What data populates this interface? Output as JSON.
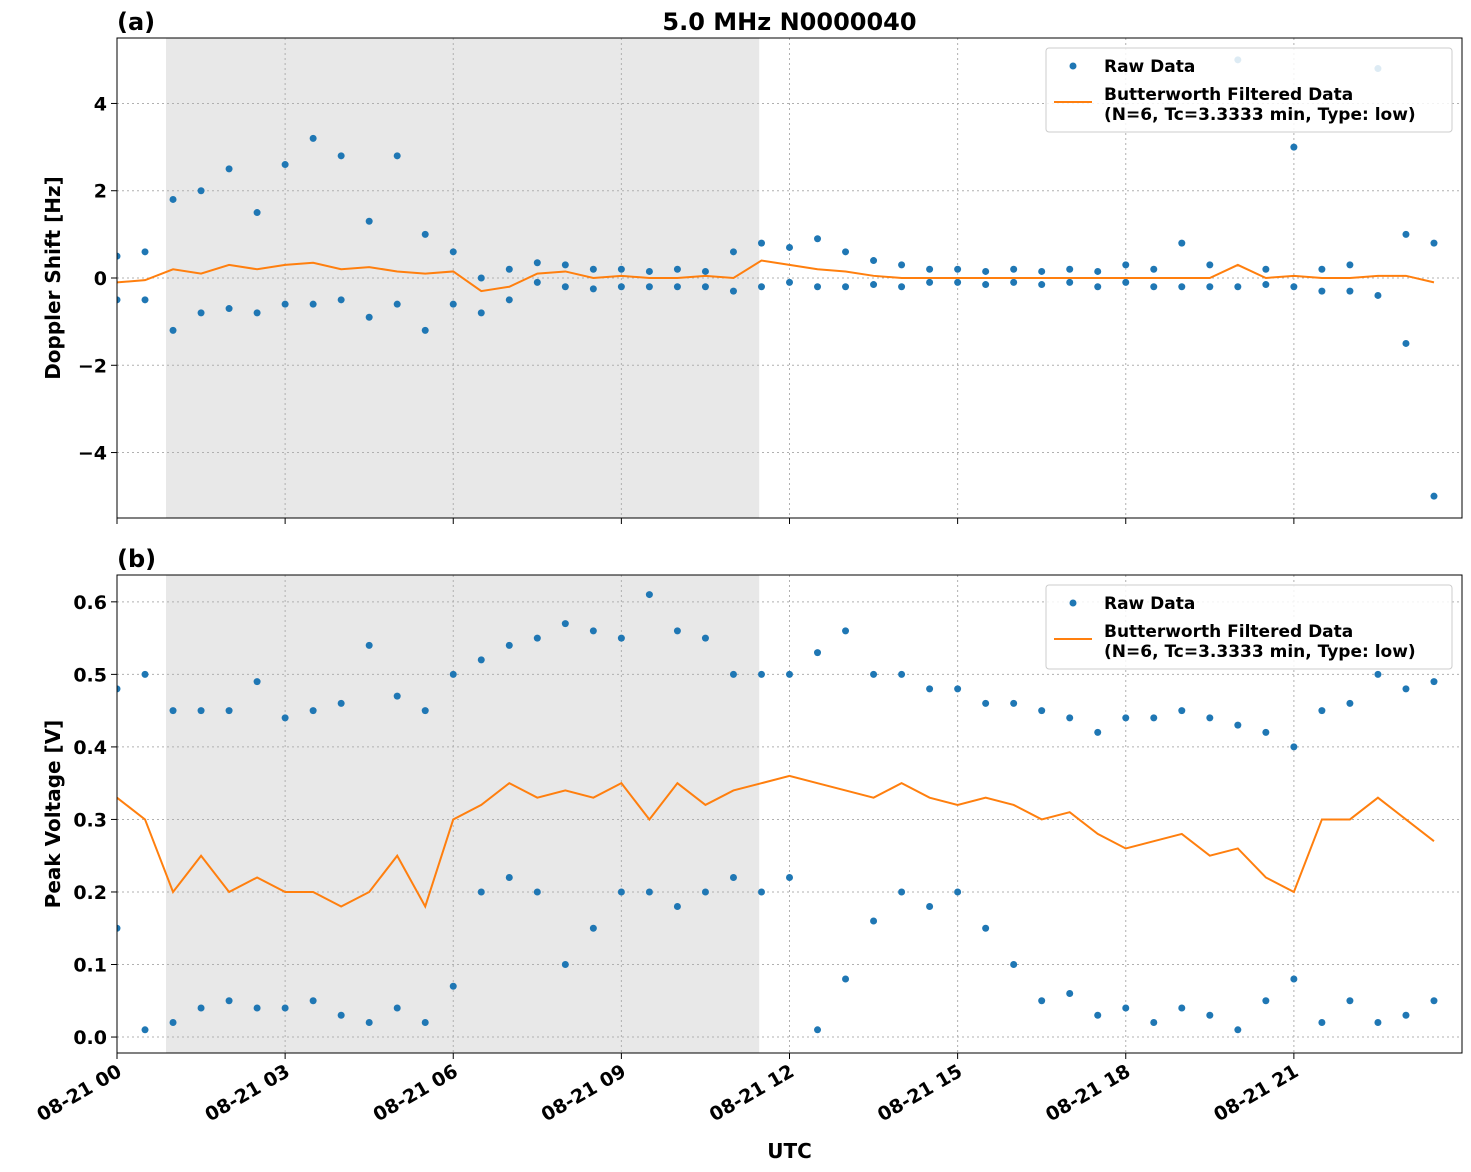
{
  "chart_data": [
    {
      "type": "scatter",
      "panel_label": "(a)",
      "title": "5.0 MHz N0000040",
      "ylabel": "Doppler Shift [Hz]",
      "xlim": [
        0,
        24
      ],
      "xticks": [
        0,
        3,
        6,
        9,
        12,
        15,
        18,
        21
      ],
      "ylim": [
        -5.5,
        5.5
      ],
      "yticks": [
        {
          "value": -4,
          "label": "−4"
        },
        {
          "value": -2,
          "label": "−2"
        },
        0,
        2,
        4
      ],
      "grid": true,
      "legend": "upper right",
      "shaded_xrange": [
        0.875,
        11.46
      ],
      "series": [
        {
          "name": "Raw Data",
          "color": "#1f77b4",
          "style": "markers",
          "x": [
            0,
            0.5,
            1,
            1.5,
            2,
            2.5,
            3,
            3.5,
            4,
            4.5,
            5,
            5.5,
            6,
            6.5,
            7,
            7.5,
            8,
            8.5,
            9,
            9.5,
            10,
            10.5,
            11,
            11.5,
            12,
            12.5,
            13,
            13.5,
            14,
            14.5,
            15,
            15.5,
            16,
            16.5,
            17,
            17.5,
            18,
            18.5,
            19,
            19.5,
            20,
            20.5,
            21,
            21.5,
            22,
            22.5,
            23,
            23.5,
            0,
            0.5,
            1,
            1.5,
            2,
            2.5,
            3,
            3.5,
            4,
            4.5,
            5,
            5.5,
            6,
            6.5,
            7,
            7.5,
            8,
            8.5,
            9,
            9.5,
            10,
            10.5,
            11,
            11.5,
            12,
            12.5,
            13,
            13.5,
            14,
            14.5,
            15,
            15.5,
            16,
            16.5,
            17,
            17.5,
            18,
            18.5,
            19,
            19.5,
            20,
            20.5,
            21,
            21.5,
            22,
            22.5,
            23,
            23.5
          ],
          "values": [
            0.5,
            0.6,
            1.8,
            2.0,
            2.5,
            1.5,
            2.6,
            3.2,
            2.8,
            1.3,
            2.8,
            1.0,
            0.6,
            0.0,
            0.2,
            0.35,
            0.3,
            0.2,
            0.2,
            0.15,
            0.2,
            0.15,
            0.6,
            0.8,
            0.7,
            0.9,
            0.6,
            0.4,
            0.3,
            0.2,
            0.2,
            0.15,
            0.2,
            0.15,
            0.2,
            0.15,
            0.3,
            0.2,
            0.8,
            0.3,
            5.0,
            0.2,
            3.0,
            0.2,
            0.3,
            4.8,
            1.0,
            0.8,
            -0.5,
            -0.5,
            -1.2,
            -0.8,
            -0.7,
            -0.8,
            -0.6,
            -0.6,
            -0.5,
            -0.9,
            -0.6,
            -1.2,
            -0.6,
            -0.8,
            -0.5,
            -0.1,
            -0.2,
            -0.25,
            -0.2,
            -0.2,
            -0.2,
            -0.2,
            -0.3,
            -0.2,
            -0.1,
            -0.2,
            -0.2,
            -0.15,
            -0.2,
            -0.1,
            -0.1,
            -0.15,
            -0.1,
            -0.15,
            -0.1,
            -0.2,
            -0.1,
            -0.2,
            -0.2,
            -0.2,
            -0.2,
            -0.15,
            -0.2,
            -0.3,
            -0.3,
            -0.4,
            -1.5,
            -5.0
          ]
        },
        {
          "name": "Butterworth Filtered Data\n(N=6, Tc=3.3333 min, Type: low)",
          "color": "#ff7f0e",
          "style": "line",
          "x": [
            0,
            0.5,
            1,
            1.5,
            2,
            2.5,
            3,
            3.5,
            4,
            4.5,
            5,
            5.5,
            6,
            6.5,
            7,
            7.5,
            8,
            8.5,
            9,
            9.5,
            10,
            10.5,
            11,
            11.5,
            12,
            12.5,
            13,
            13.5,
            14,
            14.5,
            15,
            15.5,
            16,
            16.5,
            17,
            17.5,
            18,
            18.5,
            19,
            19.5,
            20,
            20.5,
            21,
            21.5,
            22,
            22.5,
            23,
            23.5
          ],
          "values": [
            -0.1,
            -0.05,
            0.2,
            0.1,
            0.3,
            0.2,
            0.3,
            0.35,
            0.2,
            0.25,
            0.15,
            0.1,
            0.15,
            -0.3,
            -0.2,
            0.1,
            0.15,
            0.0,
            0.05,
            0.0,
            0.0,
            0.05,
            0.0,
            0.4,
            0.3,
            0.2,
            0.15,
            0.05,
            0.0,
            0.0,
            0,
            0,
            0,
            0,
            0,
            0,
            0,
            0,
            0,
            0,
            0.3,
            0,
            0.05,
            0,
            0,
            0.05,
            0.05,
            -0.1
          ]
        }
      ]
    },
    {
      "type": "scatter",
      "panel_label": "(b)",
      "ylabel": "Peak Voltage [V]",
      "xlabel": "UTC",
      "xlim": [
        0,
        24
      ],
      "xticks": [
        {
          "value": 0,
          "label": "08-21 00"
        },
        {
          "value": 3,
          "label": "08-21 03"
        },
        {
          "value": 6,
          "label": "08-21 06"
        },
        {
          "value": 9,
          "label": "08-21 09"
        },
        {
          "value": 12,
          "label": "08-21 12"
        },
        {
          "value": 15,
          "label": "08-21 15"
        },
        {
          "value": 18,
          "label": "08-21 18"
        },
        {
          "value": 21,
          "label": "08-21 21"
        }
      ],
      "ylim": [
        -0.022,
        0.637
      ],
      "yticks": [
        {
          "value": 0,
          "label": "0.0"
        },
        0.1,
        0.2,
        0.3,
        0.4,
        0.5,
        0.6
      ],
      "grid": true,
      "legend": "upper right",
      "shaded_xrange": [
        0.875,
        11.46
      ],
      "series": [
        {
          "name": "Raw Data",
          "color": "#1f77b4",
          "style": "markers",
          "x": [
            0,
            0.5,
            1,
            1.5,
            2,
            2.5,
            3,
            3.5,
            4,
            4.5,
            5,
            5.5,
            6,
            6.5,
            7,
            7.5,
            8,
            8.5,
            9,
            9.5,
            10,
            10.5,
            11,
            11.5,
            12,
            12.5,
            13,
            13.5,
            14,
            14.5,
            15,
            15.5,
            16,
            16.5,
            17,
            17.5,
            18,
            18.5,
            19,
            19.5,
            20,
            20.5,
            21,
            21.5,
            22,
            22.5,
            23,
            23.5,
            0,
            0.5,
            1,
            1.5,
            2,
            2.5,
            3,
            3.5,
            4,
            4.5,
            5,
            5.5,
            6,
            6.5,
            7,
            7.5,
            8,
            8.5,
            9,
            9.5,
            10,
            10.5,
            11,
            11.5,
            12,
            12.5,
            13,
            13.5,
            14,
            14.5,
            15,
            15.5,
            16,
            16.5,
            17,
            17.5,
            18,
            18.5,
            19,
            19.5,
            20,
            20.5,
            21,
            21.5,
            22,
            22.5,
            23,
            23.5
          ],
          "values": [
            0.48,
            0.5,
            0.45,
            0.45,
            0.45,
            0.49,
            0.44,
            0.45,
            0.46,
            0.54,
            0.47,
            0.45,
            0.5,
            0.52,
            0.54,
            0.55,
            0.57,
            0.56,
            0.55,
            0.61,
            0.56,
            0.55,
            0.5,
            0.5,
            0.5,
            0.53,
            0.56,
            0.5,
            0.5,
            0.48,
            0.48,
            0.46,
            0.46,
            0.45,
            0.44,
            0.42,
            0.44,
            0.44,
            0.45,
            0.44,
            0.43,
            0.42,
            0.4,
            0.45,
            0.46,
            0.5,
            0.48,
            0.49,
            0.15,
            0.01,
            0.02,
            0.04,
            0.05,
            0.04,
            0.04,
            0.05,
            0.03,
            0.02,
            0.04,
            0.02,
            0.07,
            0.2,
            0.22,
            0.2,
            0.1,
            0.15,
            0.2,
            0.2,
            0.18,
            0.2,
            0.22,
            0.2,
            0.22,
            0.01,
            0.08,
            0.16,
            0.2,
            0.18,
            0.2,
            0.15,
            0.1,
            0.05,
            0.06,
            0.03,
            0.04,
            0.02,
            0.04,
            0.03,
            0.01,
            0.05,
            0.08,
            0.02,
            0.05,
            0.02,
            0.03,
            0.05
          ]
        },
        {
          "name": "Butterworth Filtered Data\n(N=6, Tc=3.3333 min, Type: low)",
          "color": "#ff7f0e",
          "style": "line",
          "x": [
            0,
            0.5,
            1,
            1.5,
            2,
            2.5,
            3,
            3.5,
            4,
            4.5,
            5,
            5.5,
            6,
            6.5,
            7,
            7.5,
            8,
            8.5,
            9,
            9.5,
            10,
            10.5,
            11,
            11.5,
            12,
            12.5,
            13,
            13.5,
            14,
            14.5,
            15,
            15.5,
            16,
            16.5,
            17,
            17.5,
            18,
            18.5,
            19,
            19.5,
            20,
            20.5,
            21,
            21.5,
            22,
            22.5,
            23,
            23.5
          ],
          "values": [
            0.33,
            0.3,
            0.2,
            0.25,
            0.2,
            0.22,
            0.2,
            0.2,
            0.18,
            0.2,
            0.25,
            0.18,
            0.3,
            0.32,
            0.35,
            0.33,
            0.34,
            0.33,
            0.35,
            0.3,
            0.35,
            0.32,
            0.34,
            0.35,
            0.36,
            0.35,
            0.34,
            0.33,
            0.35,
            0.33,
            0.32,
            0.33,
            0.32,
            0.3,
            0.31,
            0.28,
            0.26,
            0.27,
            0.28,
            0.25,
            0.26,
            0.22,
            0.2,
            0.3,
            0.3,
            0.33,
            0.3,
            0.27
          ]
        }
      ]
    }
  ]
}
